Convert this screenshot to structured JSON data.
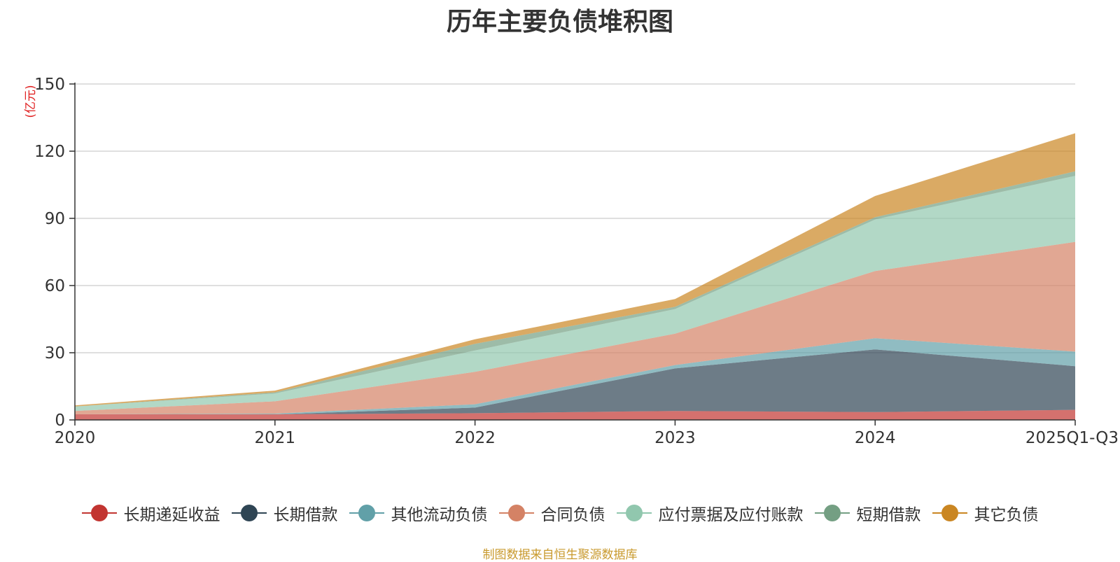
{
  "chart_data": {
    "type": "area",
    "stacked": true,
    "title": "历年主要负债堆积图",
    "unit_label": "(亿元)",
    "categories": [
      "2020",
      "2021",
      "2022",
      "2023",
      "2024",
      "2025Q1-Q3"
    ],
    "yticks": [
      0,
      30,
      60,
      90,
      120,
      150
    ],
    "ylim": [
      0,
      150
    ],
    "grid": true,
    "legend_position": "bottom",
    "series": [
      {
        "name": "长期递延收益",
        "color": "#c23531",
        "values": [
          2.5,
          2.5,
          3.0,
          4.0,
          3.5,
          4.5
        ]
      },
      {
        "name": "长期借款",
        "color": "#2f4554",
        "values": [
          0.0,
          0.0,
          2.5,
          19.0,
          28.0,
          19.5
        ]
      },
      {
        "name": "其他流动负债",
        "color": "#61a0a8",
        "values": [
          0.0,
          0.3,
          1.5,
          1.5,
          5.0,
          6.5
        ]
      },
      {
        "name": "合同负债",
        "color": "#d48265",
        "values": [
          1.5,
          5.5,
          14.5,
          14.0,
          30.0,
          49.0
        ]
      },
      {
        "name": "应付票据及应付账款",
        "color": "#91c7ae",
        "values": [
          2.0,
          3.5,
          9.5,
          11.0,
          23.0,
          29.5
        ]
      },
      {
        "name": "短期借款",
        "color": "#749f83",
        "values": [
          0.0,
          0.5,
          3.0,
          1.0,
          1.0,
          2.0
        ]
      },
      {
        "name": "其它负债",
        "color": "#ca8622",
        "values": [
          0.5,
          0.8,
          2.0,
          3.5,
          9.5,
          17.0
        ]
      }
    ]
  },
  "source_text": "制图数据来自恒生聚源数据库"
}
